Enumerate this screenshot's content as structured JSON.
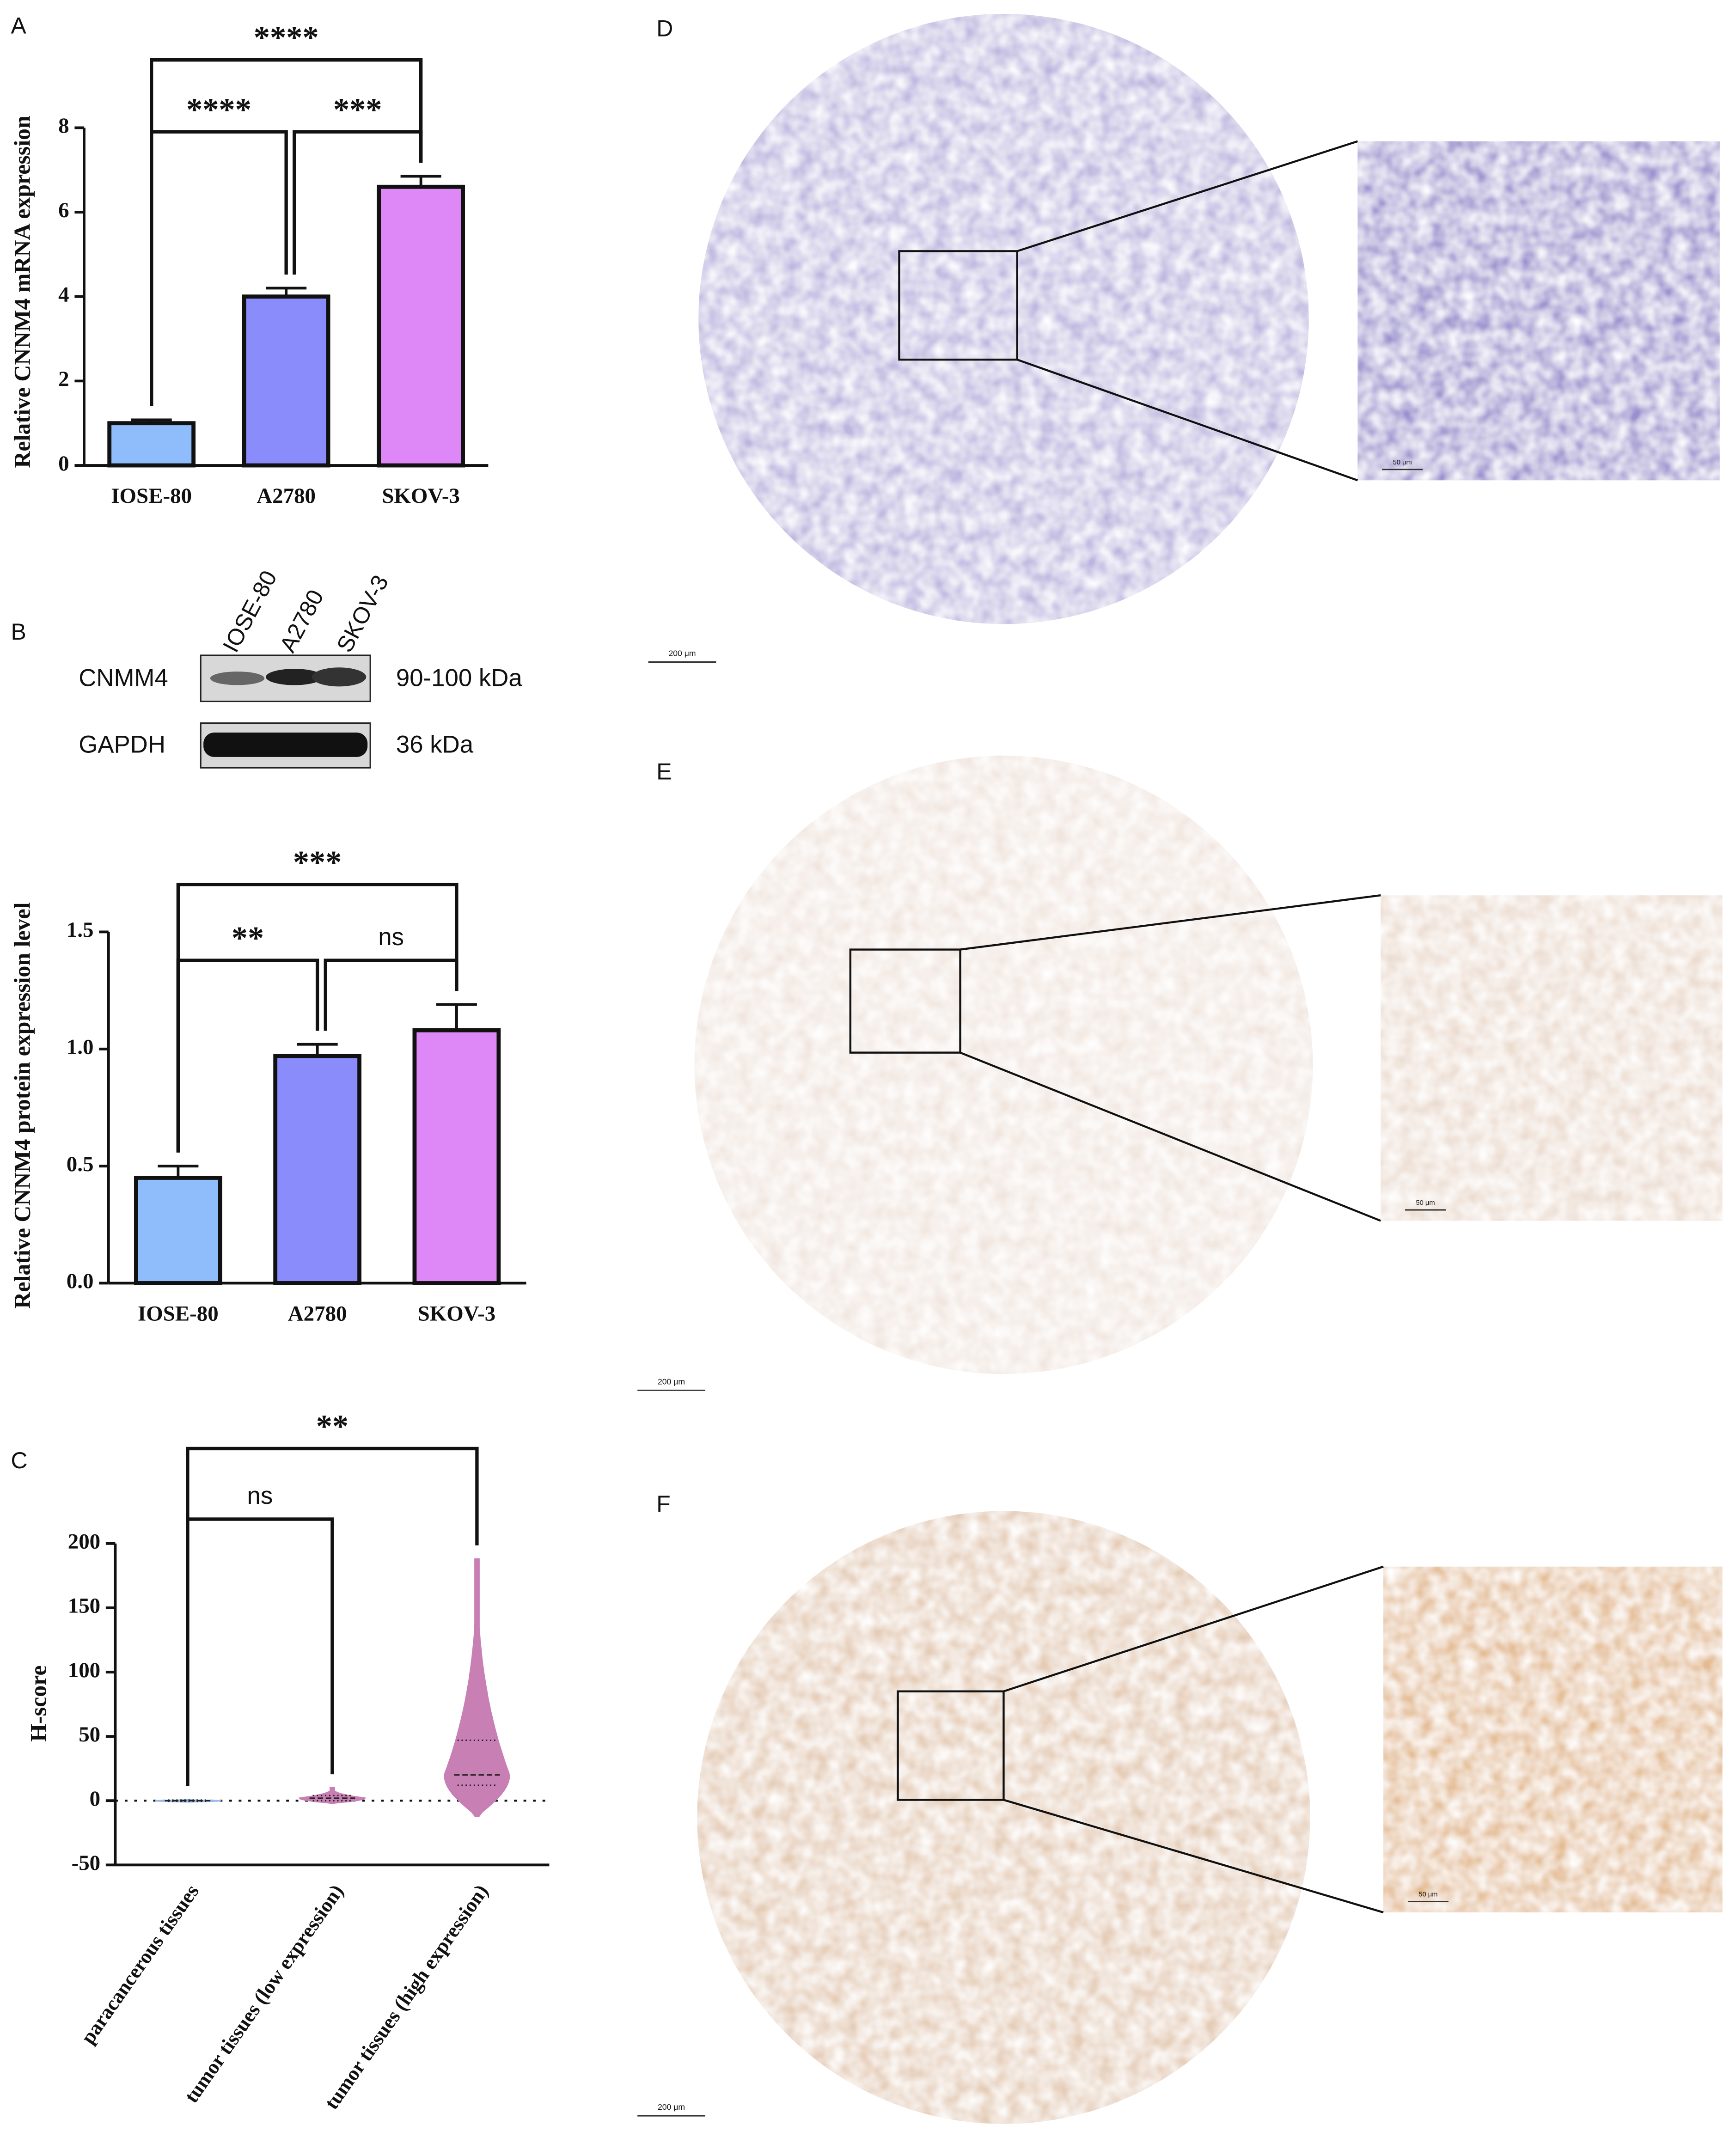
{
  "panel_labels": [
    "A",
    "B",
    "C",
    "D",
    "E",
    "F"
  ],
  "chart_data": [
    {
      "type": "bar",
      "y_label": "Relative CNNM4 mRNA expression",
      "categories": [
        "IOSE-80",
        "A2780",
        "SKOV-3"
      ],
      "values": [
        1.0,
        4.0,
        6.6
      ],
      "errors": [
        0.08,
        0.2,
        0.25
      ],
      "colors": [
        "#8fbdfb",
        "#8a8cfc",
        "#dd88f6"
      ],
      "ylim": [
        0,
        8
      ],
      "yticks": [
        0,
        2,
        4,
        6,
        8
      ],
      "brackets": [
        {
          "pair": [
            0,
            2
          ],
          "label": "****"
        },
        {
          "pair": [
            0,
            1
          ],
          "label": "****"
        },
        {
          "pair": [
            1,
            2
          ],
          "label": "***"
        }
      ]
    },
    {
      "type": "bar",
      "y_label": "Relative CNNM4 protein expression level",
      "categories": [
        "IOSE-80",
        "A2780",
        "SKOV-3"
      ],
      "values": [
        0.45,
        0.97,
        1.08
      ],
      "errors": [
        0.05,
        0.05,
        0.11
      ],
      "colors": [
        "#8fbdfb",
        "#8a8cfc",
        "#dd88f6"
      ],
      "ylim": [
        0,
        1.5
      ],
      "yticks": [
        {
          "value": 0,
          "label": "0.0"
        },
        {
          "value": 0.5,
          "label": "0.5"
        },
        {
          "value": 1,
          "label": "1.0"
        },
        {
          "value": 1.5,
          "label": "1.5"
        }
      ],
      "brackets": [
        {
          "pair": [
            0,
            2
          ],
          "label": "***"
        },
        {
          "pair": [
            0,
            1
          ],
          "label": "**"
        },
        {
          "pair": [
            1,
            2
          ],
          "label": "ns"
        }
      ]
    },
    {
      "type": "violin",
      "y_label": "H-score",
      "categories": [
        "paracancerous tissues",
        "tumor tissues (low expression)",
        "tumor tissues (high expression)"
      ],
      "violins": [
        {
          "min": -1,
          "q1": -0.5,
          "median": 0,
          "q3": 0.5,
          "max": 1
        },
        {
          "min": -2,
          "q1": 0,
          "median": 2,
          "q3": 4,
          "max": 10
        },
        {
          "min": -12,
          "q1": 12,
          "median": 20,
          "q3": 47,
          "max": 188
        }
      ],
      "colors": [
        "#9ab8e8",
        "#c77fb4",
        "#c77fb4"
      ],
      "ylim": [
        -50,
        200
      ],
      "yticks": [
        -50,
        0,
        50,
        100,
        150,
        200
      ],
      "reference_line": 0,
      "brackets": [
        {
          "pair": [
            0,
            2
          ],
          "label": "**"
        },
        {
          "pair": [
            0,
            1
          ],
          "label": "ns"
        }
      ]
    }
  ],
  "blot": {
    "lanes": [
      "IOSE-80",
      "A2780",
      "SKOV-3"
    ],
    "rows": [
      {
        "protein": "CNMM4",
        "size": "90-100 kDa"
      },
      {
        "protein": "GAPDH",
        "size": "36 kDa"
      }
    ]
  },
  "micrographs": [
    {
      "panel": "D",
      "scale_main": "200 μm",
      "scale_inset": "50 μm",
      "tint": "#bdb5df",
      "inset_tint": "#9a90cf"
    },
    {
      "panel": "E",
      "scale_main": "200 μm",
      "scale_inset": "50 μm",
      "tint": "#f1e6df",
      "inset_tint": "#ecdcd0"
    },
    {
      "panel": "F",
      "scale_main": "200 μm",
      "scale_inset": "50 μm",
      "tint": "#e5ccb6",
      "inset_tint": "#e4bc92"
    }
  ]
}
